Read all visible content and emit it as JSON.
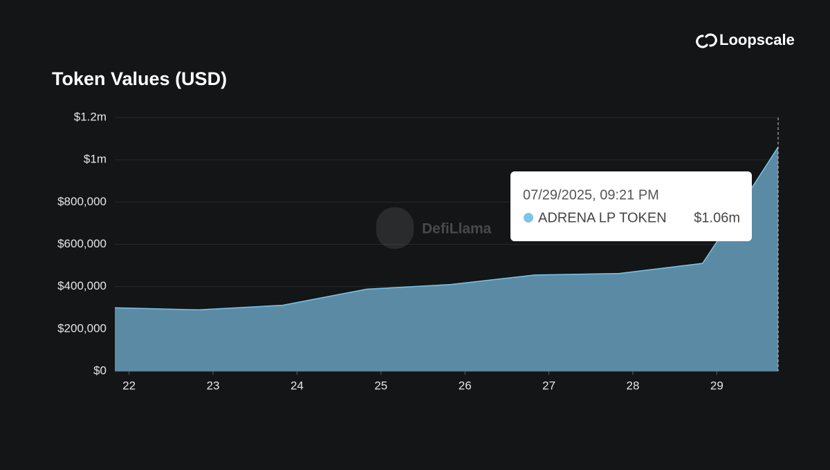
{
  "brand": "Loopscale",
  "watermark": "DefiLlama",
  "chart_data": {
    "type": "area",
    "title": "Token Values (USD)",
    "x": [
      21.83,
      22.83,
      23.83,
      24.83,
      25.83,
      26.83,
      27.83,
      28.83,
      29.03,
      29.73
    ],
    "xlim": [
      21.83,
      29.73
    ],
    "xticks": [
      22,
      23,
      24,
      25,
      26,
      27,
      28,
      29
    ],
    "ylim": [
      0,
      1200000
    ],
    "yticks": [
      {
        "value": 0,
        "label": "$0"
      },
      {
        "value": 200000,
        "label": "$200,000"
      },
      {
        "value": 400000,
        "label": "$400,000"
      },
      {
        "value": 600000,
        "label": "$600,000"
      },
      {
        "value": 800000,
        "label": "$800,000"
      },
      {
        "value": 1000000,
        "label": "$1m"
      },
      {
        "value": 1200000,
        "label": "$1.2m"
      }
    ],
    "grid": true,
    "series": [
      {
        "name": "ADRENA LP TOKEN",
        "color": "#7cc4e8",
        "values": [
          300000,
          290000,
          312000,
          388000,
          410000,
          455000,
          462000,
          510000,
          630000,
          1060000
        ],
        "value_labels": [
          null,
          null,
          null,
          null,
          null,
          null,
          null,
          null,
          null,
          "$1.06m"
        ]
      }
    ],
    "tooltip": {
      "date": "07/29/2025, 09:21 PM",
      "index": 9
    }
  }
}
